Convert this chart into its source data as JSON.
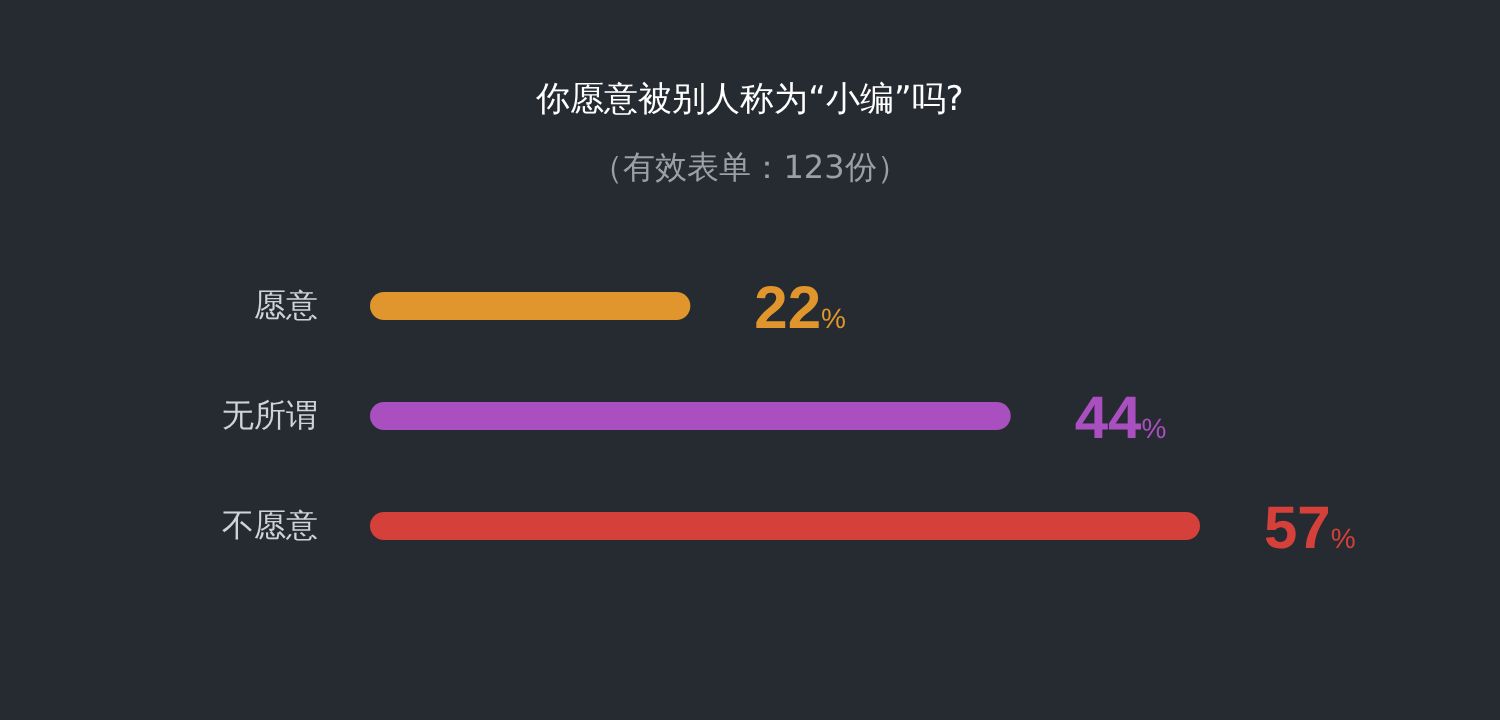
{
  "chart_data": {
    "type": "bar",
    "orientation": "horizontal",
    "title": "你愿意被别人称为“小编”吗?",
    "subtitle": "（有效表单：123份）",
    "categories": [
      "愿意",
      "无所谓",
      "不愿意"
    ],
    "values": [
      22,
      44,
      57
    ],
    "colors": [
      "#e0962c",
      "#a94fc0",
      "#d6403a"
    ],
    "value_labels": [
      "22%",
      "44%",
      "57%"
    ]
  }
}
